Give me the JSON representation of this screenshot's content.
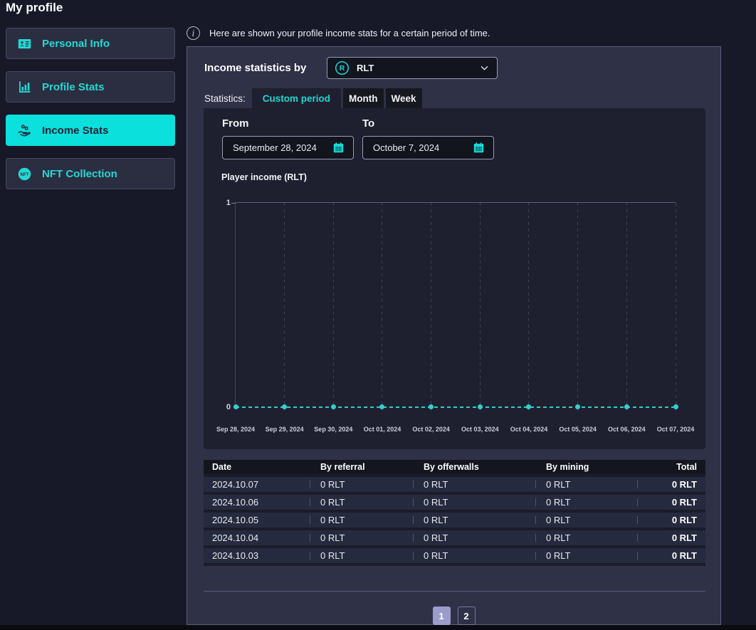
{
  "page": {
    "title": "My profile"
  },
  "colors": {
    "accent": "#0be0dc",
    "accent_text": "#24d8d3",
    "page_bg": "#171929",
    "panel_bg": "#2f3147",
    "box_bg": "#1e2030",
    "chart_line": "#2fd0c8",
    "pagination_active_bg": "#9b9cca"
  },
  "sidebar": {
    "items": [
      {
        "label": "Personal Info",
        "icon": "id-card-icon",
        "active": false
      },
      {
        "label": "Profile Stats",
        "icon": "bar-chart-icon",
        "active": false
      },
      {
        "label": "Income Stats",
        "icon": "hand-coins-icon",
        "active": true
      },
      {
        "label": "NFT Collection",
        "icon": "nft-coin-icon",
        "active": false
      }
    ]
  },
  "info_banner": {
    "text": "Here are shown your profile income stats for a certain period of time."
  },
  "panel": {
    "title": "Income statistics by",
    "currency_select": {
      "value": "RLT",
      "icon": "rlt-coin-icon"
    },
    "statistics_label": "Statistics:",
    "tabs": [
      {
        "label": "Custom period",
        "active": true
      },
      {
        "label": "Month",
        "active": false
      },
      {
        "label": "Week",
        "active": false
      }
    ],
    "date_range": {
      "from_label": "From",
      "from_value": "September 28, 2024",
      "to_label": "To",
      "to_value": "October 7, 2024"
    },
    "chart_title": "Player income (RLT)"
  },
  "chart_data": {
    "type": "line",
    "title": "Player income (RLT)",
    "x": [
      "Sep 28, 2024",
      "Sep 29, 2024",
      "Sep 30, 2024",
      "Oct 01, 2024",
      "Oct 02, 2024",
      "Oct 03, 2024",
      "Oct 04, 2024",
      "Oct 05, 2024",
      "Oct 06, 2024",
      "Oct 07, 2024"
    ],
    "series": [
      {
        "name": "Player income (RLT)",
        "values": [
          0,
          0,
          0,
          0,
          0,
          0,
          0,
          0,
          0,
          0
        ]
      }
    ],
    "ylim": [
      0,
      1
    ],
    "yticks": [
      0,
      1
    ],
    "grid": "vertical-dashed",
    "line_style": "dashed",
    "line_color": "#2fd0c8",
    "legend": "none"
  },
  "table": {
    "columns": [
      "Date",
      "By referral",
      "By offerwalls",
      "By mining",
      "Total"
    ],
    "rows": [
      [
        "2024.10.07",
        "0 RLT",
        "0 RLT",
        "0 RLT",
        "0 RLT"
      ],
      [
        "2024.10.06",
        "0 RLT",
        "0 RLT",
        "0 RLT",
        "0 RLT"
      ],
      [
        "2024.10.05",
        "0 RLT",
        "0 RLT",
        "0 RLT",
        "0 RLT"
      ],
      [
        "2024.10.04",
        "0 RLT",
        "0 RLT",
        "0 RLT",
        "0 RLT"
      ],
      [
        "2024.10.03",
        "0 RLT",
        "0 RLT",
        "0 RLT",
        "0 RLT"
      ]
    ]
  },
  "pagination": {
    "pages": [
      "1",
      "2"
    ],
    "active": "1"
  }
}
